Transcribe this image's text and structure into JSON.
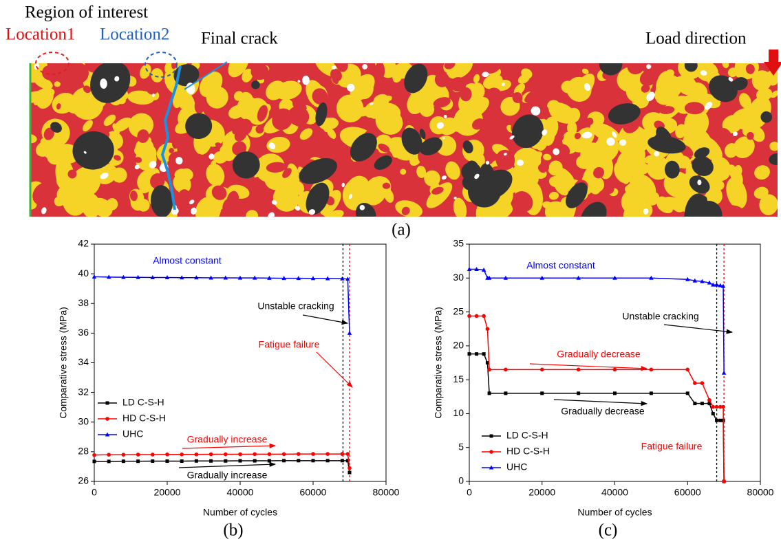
{
  "panel_a": {
    "region_label": "Region of interest",
    "location1": "Location1",
    "location2": "Location2",
    "crack_label": "Final crack",
    "load_label": "Load direction",
    "caption": "(a)"
  },
  "chart_data": [
    {
      "type": "line",
      "caption": "(b)",
      "x_label": "Number of cycles",
      "y_label": "Comparative stress (MPa)",
      "xlim": [
        0,
        80000
      ],
      "xticks": [
        0,
        20000,
        40000,
        60000,
        80000
      ],
      "ylim": [
        26,
        42
      ],
      "yticks": [
        26,
        28,
        30,
        32,
        34,
        36,
        38,
        40,
        42
      ],
      "legend": "center left",
      "x": [
        0,
        4000,
        8000,
        12000,
        16000,
        20000,
        24000,
        28000,
        32000,
        36000,
        40000,
        44000,
        48000,
        52000,
        56000,
        60000,
        64000,
        68000,
        69500,
        70000
      ],
      "series": [
        {
          "name": "LD C-S-H",
          "color": "#000000",
          "marker": "square",
          "values": [
            27.35,
            27.35,
            27.36,
            27.36,
            27.37,
            27.37,
            27.37,
            27.38,
            27.38,
            27.38,
            27.39,
            27.39,
            27.39,
            27.4,
            27.4,
            27.4,
            27.4,
            27.4,
            27.4,
            26.6
          ]
        },
        {
          "name": "HD C-S-H",
          "color": "#ff0000",
          "marker": "circle",
          "values": [
            27.78,
            27.8,
            27.8,
            27.81,
            27.81,
            27.82,
            27.82,
            27.82,
            27.83,
            27.83,
            27.83,
            27.84,
            27.84,
            27.84,
            27.85,
            27.85,
            27.85,
            27.85,
            27.85,
            26.9
          ]
        },
        {
          "name": "UHC",
          "color": "#0000ff",
          "marker": "triangle",
          "values": [
            39.8,
            39.78,
            39.77,
            39.76,
            39.75,
            39.75,
            39.74,
            39.74,
            39.73,
            39.73,
            39.72,
            39.72,
            39.71,
            39.7,
            39.7,
            39.69,
            39.68,
            39.67,
            39.65,
            36.0
          ]
        }
      ],
      "vlines": [
        {
          "x": 68200,
          "color": "#000000"
        },
        {
          "x": 70000,
          "color": "#ff0000"
        }
      ],
      "annotations": [
        {
          "text": "Almost constant",
          "color": "#0000ff"
        },
        {
          "text": "Unstable cracking",
          "color": "#000000"
        },
        {
          "text": "Fatigue failure",
          "color": "#ff0000"
        },
        {
          "text": "Gradually increase",
          "color": "#ff0000"
        },
        {
          "text": "Gradually increase",
          "color": "#000000"
        }
      ]
    },
    {
      "type": "line",
      "caption": "(c)",
      "x_label": "Number of cycles",
      "y_label": "Comparative stress (MPa)",
      "xlim": [
        0,
        80000
      ],
      "xticks": [
        0,
        20000,
        40000,
        60000,
        80000
      ],
      "ylim": [
        0,
        35
      ],
      "yticks": [
        0,
        5,
        10,
        15,
        20,
        25,
        30,
        35
      ],
      "legend": "lower left",
      "x": [
        0,
        2000,
        4000,
        5000,
        5500,
        10000,
        20000,
        30000,
        40000,
        50000,
        60000,
        62000,
        64000,
        66000,
        67000,
        68000,
        69000,
        69800,
        70000
      ],
      "series": [
        {
          "name": "LD C-S-H",
          "color": "#000000",
          "marker": "square",
          "values": [
            18.8,
            18.8,
            18.8,
            17.5,
            13,
            13,
            13,
            13,
            13,
            13,
            13,
            11.5,
            11.5,
            11.5,
            10,
            9,
            9,
            9,
            0
          ]
        },
        {
          "name": "HD C-S-H",
          "color": "#ff0000",
          "marker": "circle",
          "values": [
            24.4,
            24.4,
            24.4,
            22.5,
            16.5,
            16.5,
            16.5,
            16.5,
            16.5,
            16.5,
            16.5,
            14.5,
            14.5,
            12,
            11,
            11,
            11,
            11,
            0
          ]
        },
        {
          "name": "UHC",
          "color": "#0000ff",
          "marker": "triangle",
          "values": [
            31.3,
            31.3,
            31.2,
            30,
            30,
            30,
            30,
            30,
            30,
            30,
            29.8,
            29.6,
            29.5,
            29.3,
            29,
            29,
            28.9,
            28.8,
            16
          ]
        }
      ],
      "vlines": [
        {
          "x": 68000,
          "color": "#000000"
        },
        {
          "x": 70000,
          "color": "#ff0000"
        }
      ],
      "annotations": [
        {
          "text": "Almost constant",
          "color": "#0000ff"
        },
        {
          "text": "Unstable cracking",
          "color": "#000000"
        },
        {
          "text": "Gradually decrease",
          "color": "#ff0000"
        },
        {
          "text": "Gradually decrease",
          "color": "#000000"
        },
        {
          "text": "Fatigue failure",
          "color": "#ff0000"
        }
      ]
    }
  ]
}
